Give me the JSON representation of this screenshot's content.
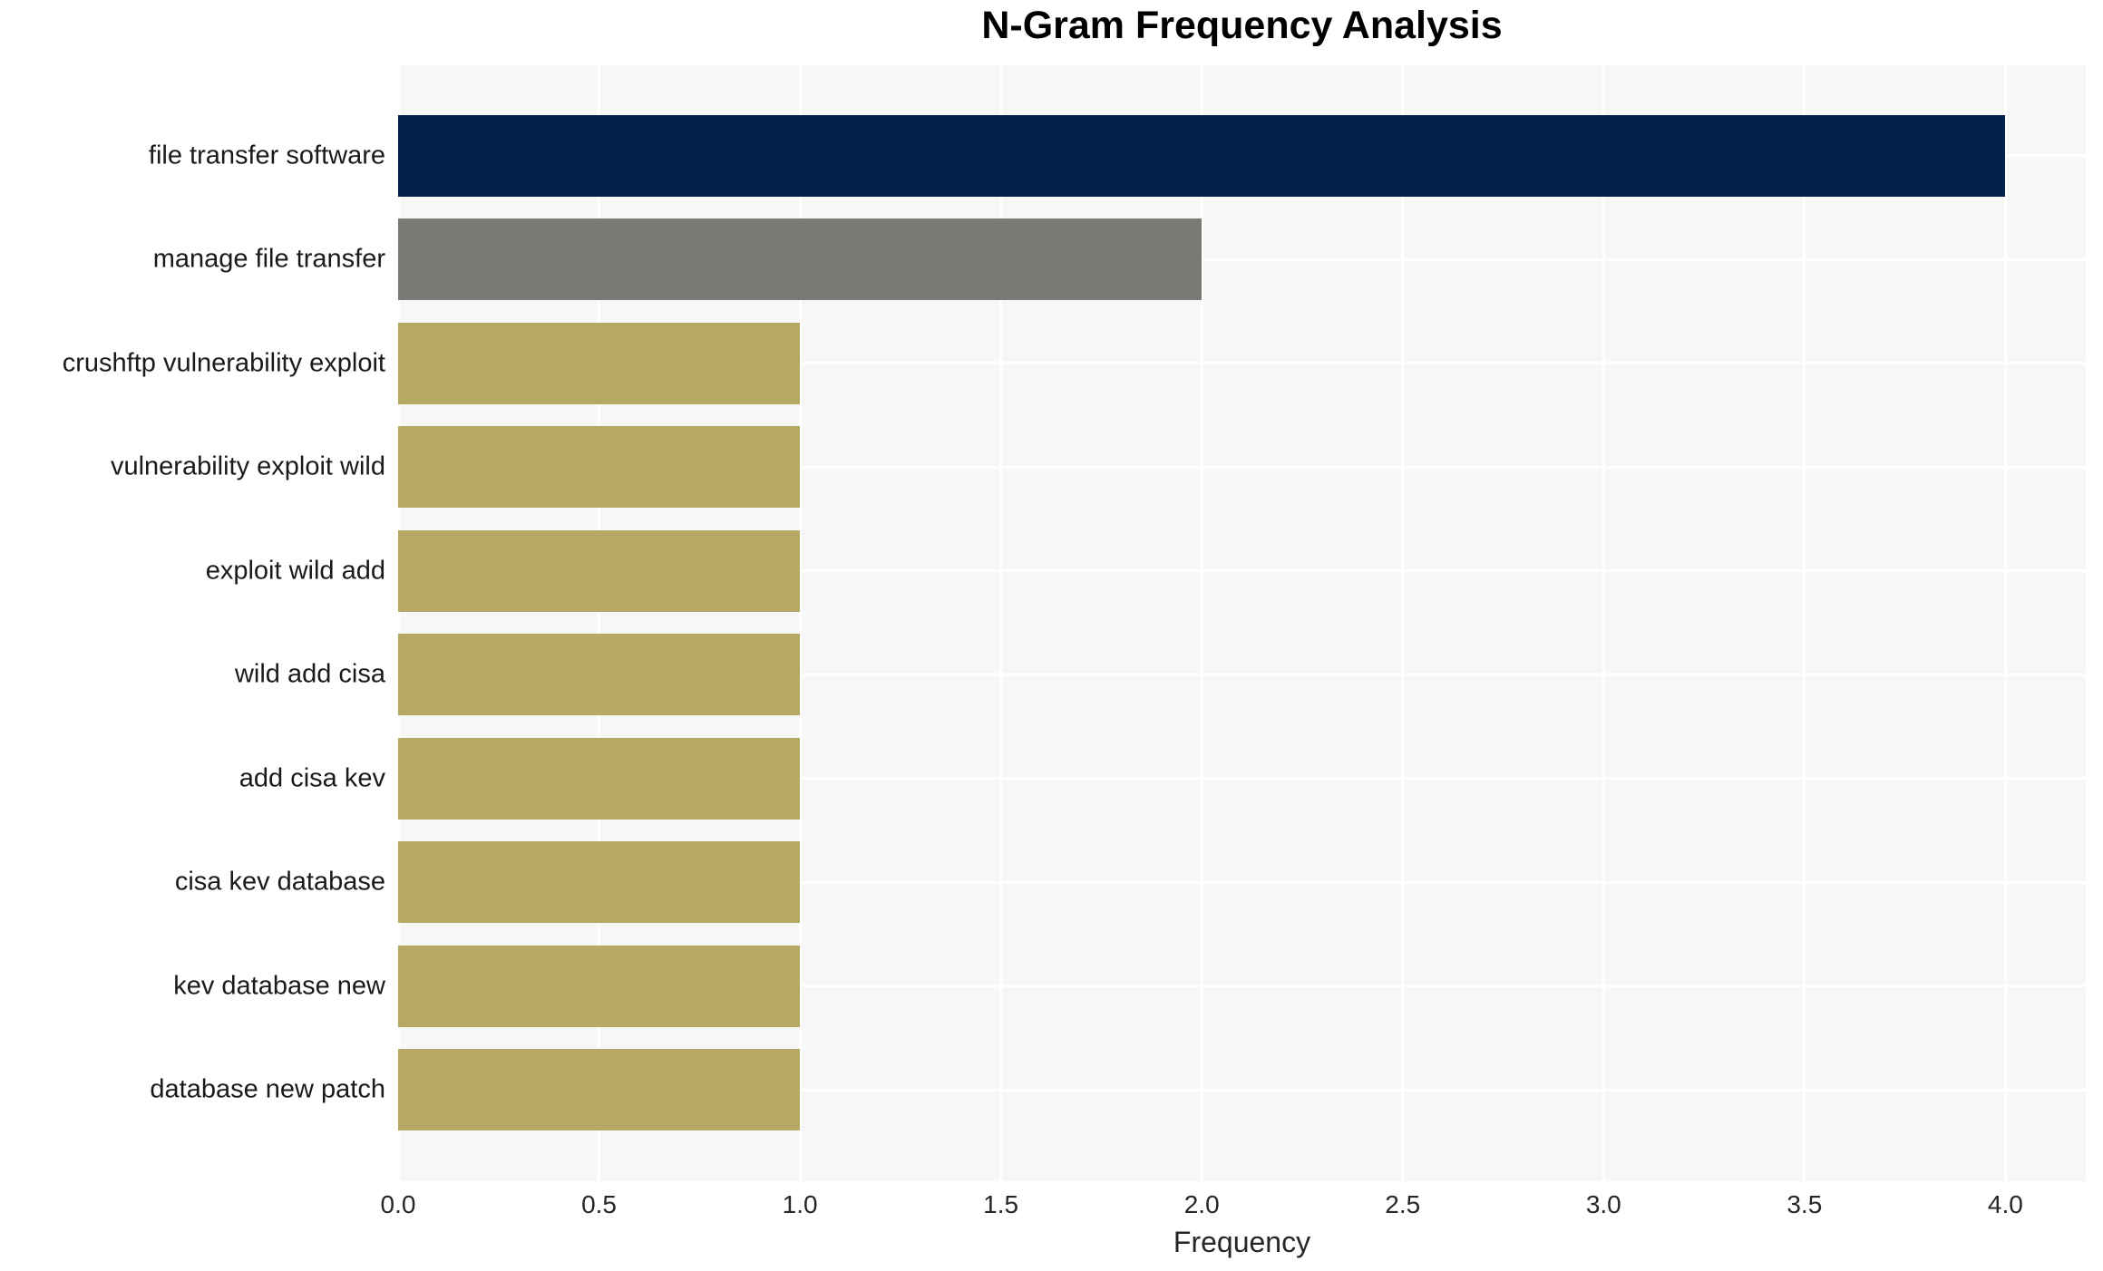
{
  "chart_data": {
    "type": "bar",
    "orientation": "horizontal",
    "title": "N-Gram Frequency Analysis",
    "xlabel": "Frequency",
    "ylabel": "",
    "categories": [
      "file transfer software",
      "manage file transfer",
      "crushftp vulnerability exploit",
      "vulnerability exploit wild",
      "exploit wild add",
      "wild add cisa",
      "add cisa kev",
      "cisa kev database",
      "kev database new",
      "database new patch"
    ],
    "values": [
      4,
      2,
      1,
      1,
      1,
      1,
      1,
      1,
      1,
      1
    ],
    "bar_colors": [
      "#02214c",
      "#7a7a74",
      "#b5a963",
      "#b5a963",
      "#b5a963",
      "#b5a963",
      "#b5a963",
      "#b5a963",
      "#b5a963",
      "#b5a963"
    ],
    "xlim": [
      0,
      4.2
    ],
    "xticks": [
      0.0,
      0.5,
      1.0,
      1.5,
      2.0,
      2.5,
      3.0,
      3.5,
      4.0
    ],
    "xtick_labels": [
      "0.0",
      "0.5",
      "1.0",
      "1.5",
      "2.0",
      "2.5",
      "3.0",
      "3.5",
      "4.0"
    ],
    "grid": true,
    "legend": false,
    "plot_bg_color": "#f7f7f7",
    "grid_color": "#ffffff",
    "text_color": "#1a1a1a"
  }
}
